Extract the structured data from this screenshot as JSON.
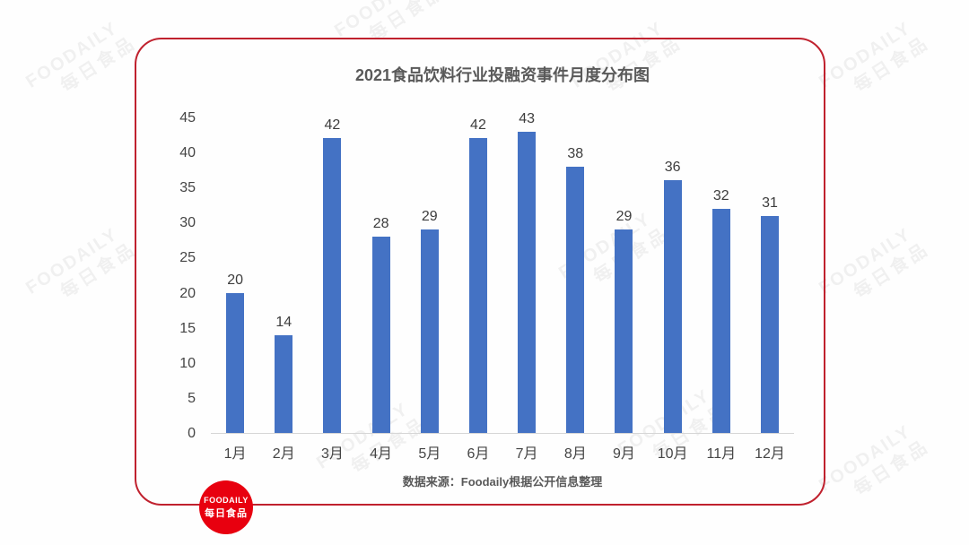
{
  "watermark": {
    "line1": "FOODAILY",
    "line2": "每日食品"
  },
  "logo": {
    "line1": "FOODAILY",
    "line2": "每日食品"
  },
  "colors": {
    "border_red": "#c0212e",
    "logo_red": "#e8000f",
    "bar_blue": "#4472c4",
    "title_gray": "#595959",
    "axis_line_gray": "#d6d6d6"
  },
  "chart_data": {
    "type": "bar",
    "title": "2021食品饮料行业投融资事件月度分布图",
    "categories": [
      "1月",
      "2月",
      "3月",
      "4月",
      "5月",
      "6月",
      "7月",
      "8月",
      "9月",
      "10月",
      "11月",
      "12月"
    ],
    "values": [
      20,
      14,
      42,
      28,
      29,
      42,
      43,
      38,
      29,
      36,
      32,
      31
    ],
    "xlabel": "",
    "ylabel": "",
    "ylim": [
      0,
      45
    ],
    "yticks": [
      0,
      5,
      10,
      15,
      20,
      25,
      30,
      35,
      40,
      45
    ],
    "grid": false,
    "legend": null,
    "data_labels": true,
    "source_note": "数据来源：Foodaily根据公开信息整理"
  }
}
